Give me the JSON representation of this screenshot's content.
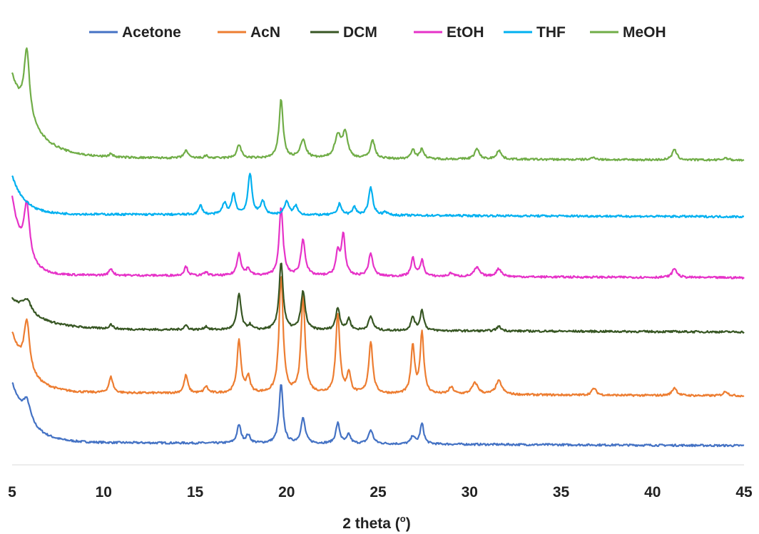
{
  "chart_data": {
    "type": "line",
    "title": "",
    "xlabel": "2 theta (",
    "xlabel_sup": "o",
    "xlabel_end": ")",
    "ylabel": "",
    "xlim": [
      5,
      45
    ],
    "x_ticks": [
      "5",
      "10",
      "15",
      "20",
      "25",
      "30",
      "35",
      "40",
      "45"
    ],
    "y_axis_visible": false,
    "grid": false,
    "legend_position": "top",
    "series": [
      {
        "name": "Acetone",
        "color": "#4472C4",
        "baseline": 1.0,
        "bg_amp": 2.6,
        "bg_decay": 0.9,
        "end_offset": -0.15,
        "peaks": [
          [
            5.8,
            0.9,
            0.25
          ],
          [
            17.4,
            0.8,
            0.13
          ],
          [
            17.9,
            0.35,
            0.13
          ],
          [
            19.7,
            2.6,
            0.13
          ],
          [
            20.9,
            1.1,
            0.14
          ],
          [
            22.8,
            0.9,
            0.13
          ],
          [
            23.4,
            0.4,
            0.12
          ],
          [
            24.6,
            0.6,
            0.15
          ],
          [
            26.9,
            0.35,
            0.12
          ],
          [
            27.4,
            0.9,
            0.12
          ]
        ]
      },
      {
        "name": "AcN",
        "color": "#ED7D31",
        "baseline": 3.2,
        "bg_amp": 2.6,
        "bg_decay": 0.9,
        "end_offset": -0.15,
        "peaks": [
          [
            5.8,
            2.2,
            0.18
          ],
          [
            10.4,
            0.7,
            0.13
          ],
          [
            14.5,
            0.8,
            0.12
          ],
          [
            15.6,
            0.3,
            0.12
          ],
          [
            17.4,
            2.3,
            0.13
          ],
          [
            17.9,
            0.7,
            0.13
          ],
          [
            19.7,
            5.2,
            0.13
          ],
          [
            20.9,
            4.3,
            0.13
          ],
          [
            22.8,
            3.5,
            0.13
          ],
          [
            23.4,
            0.9,
            0.12
          ],
          [
            24.6,
            2.3,
            0.13
          ],
          [
            26.9,
            2.1,
            0.12
          ],
          [
            27.4,
            2.7,
            0.12
          ],
          [
            29.0,
            0.3,
            0.15
          ],
          [
            30.3,
            0.5,
            0.2
          ],
          [
            31.6,
            0.6,
            0.2
          ],
          [
            36.8,
            0.3,
            0.15
          ],
          [
            41.2,
            0.35,
            0.15
          ],
          [
            44.0,
            0.2,
            0.15
          ]
        ]
      },
      {
        "name": "DCM",
        "color": "#375623",
        "baseline": 6.0,
        "bg_amp": 1.3,
        "bg_decay": 1.5,
        "end_offset": -0.12,
        "peaks": [
          [
            5.8,
            0.6,
            0.3
          ],
          [
            10.4,
            0.2,
            0.12
          ],
          [
            14.5,
            0.2,
            0.12
          ],
          [
            15.6,
            0.15,
            0.12
          ],
          [
            17.4,
            1.6,
            0.13
          ],
          [
            18.0,
            0.2,
            0.12
          ],
          [
            19.7,
            3.0,
            0.13
          ],
          [
            20.9,
            1.7,
            0.14
          ],
          [
            22.8,
            1.0,
            0.13
          ],
          [
            23.4,
            0.5,
            0.12
          ],
          [
            24.6,
            0.6,
            0.15
          ],
          [
            26.9,
            0.6,
            0.12
          ],
          [
            27.4,
            0.9,
            0.12
          ],
          [
            31.6,
            0.2,
            0.15
          ]
        ]
      },
      {
        "name": "EtOH",
        "color": "#E632C8",
        "baseline": 8.4,
        "bg_amp": 3.4,
        "bg_decay": 0.6,
        "end_offset": -0.12,
        "peaks": [
          [
            5.8,
            2.4,
            0.18
          ],
          [
            10.4,
            0.3,
            0.12
          ],
          [
            14.5,
            0.4,
            0.12
          ],
          [
            15.6,
            0.15,
            0.12
          ],
          [
            17.4,
            1.0,
            0.13
          ],
          [
            17.9,
            0.3,
            0.13
          ],
          [
            19.7,
            3.0,
            0.13
          ],
          [
            20.9,
            1.6,
            0.14
          ],
          [
            22.8,
            1.0,
            0.13
          ],
          [
            23.1,
            1.8,
            0.12
          ],
          [
            24.6,
            1.0,
            0.14
          ],
          [
            26.9,
            0.8,
            0.12
          ],
          [
            27.4,
            0.7,
            0.12
          ],
          [
            29.0,
            0.15,
            0.15
          ],
          [
            30.4,
            0.4,
            0.18
          ],
          [
            31.6,
            0.35,
            0.18
          ],
          [
            41.2,
            0.4,
            0.15
          ]
        ]
      },
      {
        "name": "THF",
        "color": "#00B0F0",
        "baseline": 11.1,
        "bg_amp": 1.7,
        "bg_decay": 0.7,
        "end_offset": -0.12,
        "peaks": [
          [
            15.3,
            0.4,
            0.12
          ],
          [
            16.6,
            0.5,
            0.13
          ],
          [
            17.1,
            0.9,
            0.13
          ],
          [
            18.0,
            1.8,
            0.13
          ],
          [
            18.7,
            0.6,
            0.13
          ],
          [
            20.0,
            0.6,
            0.14
          ],
          [
            20.5,
            0.4,
            0.12
          ],
          [
            22.9,
            0.5,
            0.13
          ],
          [
            23.7,
            0.35,
            0.12
          ],
          [
            24.6,
            1.2,
            0.14
          ],
          [
            25.4,
            0.15,
            0.12
          ]
        ]
      },
      {
        "name": "MeOH",
        "color": "#70AD47",
        "baseline": 13.6,
        "bg_amp": 3.6,
        "bg_decay": 1.2,
        "end_offset": -0.12,
        "peaks": [
          [
            5.8,
            3.0,
            0.18
          ],
          [
            10.4,
            0.15,
            0.12
          ],
          [
            14.5,
            0.35,
            0.12
          ],
          [
            15.6,
            0.1,
            0.12
          ],
          [
            17.4,
            0.6,
            0.14
          ],
          [
            19.7,
            2.6,
            0.13
          ],
          [
            20.9,
            0.8,
            0.18
          ],
          [
            22.8,
            1.0,
            0.2
          ],
          [
            23.2,
            1.1,
            0.16
          ],
          [
            24.7,
            0.8,
            0.15
          ],
          [
            26.9,
            0.45,
            0.12
          ],
          [
            27.4,
            0.45,
            0.12
          ],
          [
            30.4,
            0.45,
            0.15
          ],
          [
            31.6,
            0.4,
            0.15
          ],
          [
            36.8,
            0.1,
            0.15
          ],
          [
            41.2,
            0.45,
            0.15
          ],
          [
            44.0,
            0.1,
            0.15
          ]
        ]
      }
    ]
  }
}
